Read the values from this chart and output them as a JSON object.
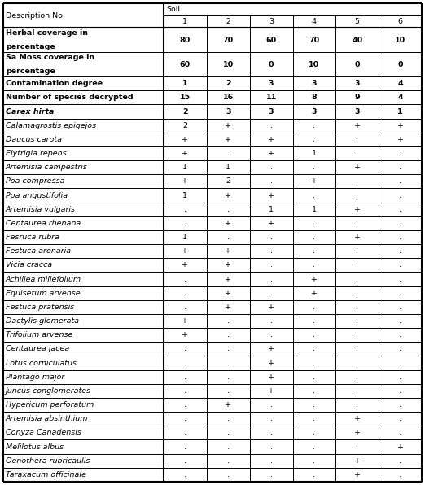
{
  "rows": [
    [
      "Herbal coverage in\npercentage",
      "80",
      "70",
      "60",
      "70",
      "40",
      "10"
    ],
    [
      "Sa Moss coverage in\npercentage",
      "60",
      "10",
      "0",
      "10",
      "0",
      "0"
    ],
    [
      "Contamination degree",
      "1",
      "2",
      "3",
      "3",
      "3",
      "4"
    ],
    [
      "Number of species decrypted",
      "15",
      "16",
      "11",
      "8",
      "9",
      "4"
    ],
    [
      "Carex hirta",
      "2",
      "3",
      "3",
      "3",
      "3",
      "1"
    ],
    [
      "Calamagrostis epigejos",
      "2",
      "+",
      ".",
      ".",
      "+",
      "+"
    ],
    [
      "Daucus carota",
      "+",
      "+",
      "+",
      ".",
      ".",
      "+"
    ],
    [
      "Elytrigia repens",
      "+",
      ".",
      "+",
      "1",
      ".",
      "."
    ],
    [
      "Artemisia campestris",
      "1",
      "1",
      ".",
      ".",
      "+",
      "."
    ],
    [
      "Poa compressa",
      "+",
      "2",
      ".",
      "+",
      ".",
      "."
    ],
    [
      "Poa angustifolia",
      "1",
      "+",
      "+",
      ".",
      ".",
      "."
    ],
    [
      "Artemisia vulgaris",
      ".",
      ".",
      "1",
      "1",
      "+",
      "."
    ],
    [
      "Centaurea rhenana",
      ".",
      "+",
      "+",
      ".",
      ".",
      "."
    ],
    [
      "Fesruca rubra",
      "1",
      ".",
      ".",
      ".",
      "+",
      "."
    ],
    [
      "Festuca arenaria",
      "+",
      "+",
      ".",
      ".",
      ".",
      "."
    ],
    [
      "Vicia cracca",
      "+",
      "+",
      ".",
      ".",
      ".",
      "."
    ],
    [
      "Achillea millefolium",
      ".",
      "+",
      ".",
      "+",
      ".",
      "."
    ],
    [
      "Equisetum arvense",
      ".",
      "+",
      ".",
      "+",
      ".",
      "."
    ],
    [
      "Festuca pratensis",
      ".",
      "+",
      "+",
      ".",
      ".",
      "."
    ],
    [
      "Dactylis glomerata",
      "+",
      ".",
      ".",
      ".",
      ".",
      "."
    ],
    [
      "Trifolium arvense",
      "+",
      ".",
      ".",
      ".",
      ".",
      "."
    ],
    [
      "Centaurea jacea",
      ".",
      ".",
      "+",
      ".",
      ".",
      "."
    ],
    [
      "Lotus corniculatus",
      ".",
      ".",
      "+",
      ".",
      ".",
      "."
    ],
    [
      "Plantago major",
      ".",
      ".",
      "+",
      ".",
      ".",
      "."
    ],
    [
      "Juncus conglomerates",
      ".",
      ".",
      "+",
      ".",
      ".",
      "."
    ],
    [
      "Hypericum perforatum",
      ".",
      "+",
      ".",
      ".",
      ".",
      "."
    ],
    [
      "Artemisia absinthium",
      ".",
      ".",
      ".",
      ".",
      "+",
      "."
    ],
    [
      "Conyza Canadensis",
      ".",
      ".",
      ".",
      ".",
      "+",
      "."
    ],
    [
      "Melilotus albus",
      ".",
      ".",
      ".",
      ".",
      ".",
      "+"
    ],
    [
      "Oenothera rubricaulis",
      ".",
      ".",
      ".",
      ".",
      "+",
      "."
    ],
    [
      "Taraxacum officinale",
      ".",
      ".",
      ".",
      ".",
      "+",
      "."
    ]
  ],
  "bold_rows": [
    0,
    1,
    2,
    3,
    4
  ],
  "italic_rows": [
    4,
    5,
    6,
    7,
    8,
    9,
    10,
    11,
    12,
    13,
    14,
    15,
    16,
    17,
    18,
    19,
    20,
    21,
    22,
    23,
    24,
    25,
    26,
    27,
    28,
    29,
    30
  ]
}
